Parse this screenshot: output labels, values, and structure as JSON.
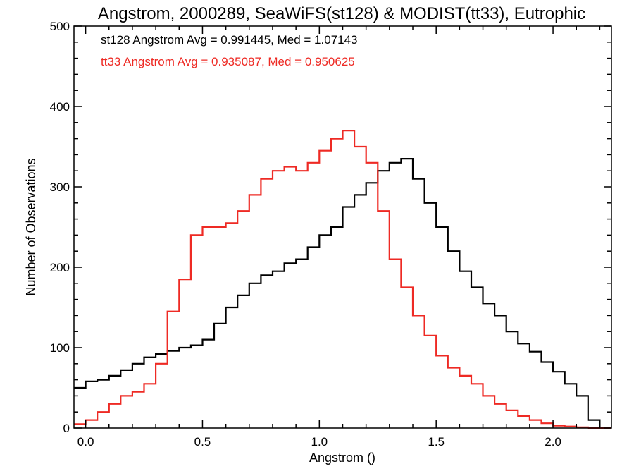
{
  "chart_data": {
    "type": "line",
    "title": "Angstrom, 2000289, SeaWiFS(st128) & MODIST(tt33), Eutrophic",
    "xlabel": "Angstrom ()",
    "ylabel": "Number of Observations",
    "xlim": [
      -0.05,
      2.25
    ],
    "ylim": [
      0,
      500
    ],
    "x_ticks": [
      "0.0",
      "0.5",
      "1.0",
      "1.5",
      "2.0"
    ],
    "y_ticks": [
      "0",
      "100",
      "200",
      "300",
      "400",
      "500"
    ],
    "legend_position": "top-left",
    "grid": false,
    "step": true,
    "x": [
      -0.05,
      0.0,
      0.05,
      0.1,
      0.15,
      0.2,
      0.25,
      0.3,
      0.35,
      0.4,
      0.45,
      0.5,
      0.55,
      0.6,
      0.65,
      0.7,
      0.75,
      0.8,
      0.85,
      0.9,
      0.95,
      1.0,
      1.05,
      1.1,
      1.15,
      1.2,
      1.25,
      1.3,
      1.35,
      1.4,
      1.45,
      1.5,
      1.55,
      1.6,
      1.65,
      1.7,
      1.75,
      1.8,
      1.85,
      1.9,
      1.95,
      2.0,
      2.05,
      2.1,
      2.15,
      2.2,
      2.25
    ],
    "series": [
      {
        "name": "st128",
        "color": "#000000",
        "annotation": "st128 Angstrom Avg = 0.991445, Med = 1.07143",
        "values": [
          50,
          58,
          60,
          65,
          72,
          80,
          88,
          92,
          96,
          100,
          103,
          110,
          130,
          150,
          165,
          180,
          190,
          195,
          205,
          210,
          225,
          240,
          250,
          275,
          290,
          305,
          320,
          330,
          335,
          310,
          280,
          250,
          220,
          195,
          175,
          155,
          140,
          120,
          105,
          95,
          82,
          70,
          55,
          40,
          10,
          0,
          0
        ]
      },
      {
        "name": "tt33",
        "color": "#ee2a24",
        "annotation": "tt33 Angstrom Avg = 0.935087, Med = 0.950625",
        "values": [
          5,
          10,
          20,
          30,
          40,
          45,
          55,
          80,
          145,
          185,
          240,
          250,
          250,
          255,
          270,
          290,
          310,
          320,
          325,
          320,
          330,
          345,
          360,
          370,
          350,
          330,
          270,
          210,
          175,
          140,
          115,
          90,
          75,
          65,
          55,
          40,
          30,
          22,
          15,
          10,
          6,
          3,
          2,
          1,
          0,
          0,
          0
        ]
      }
    ]
  }
}
